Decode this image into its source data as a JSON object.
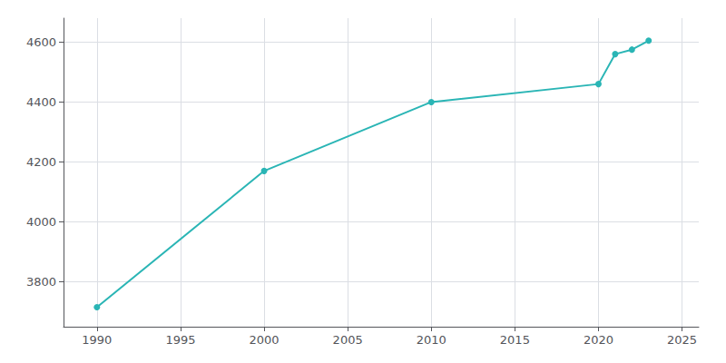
{
  "chart_data": {
    "type": "line",
    "x": [
      1990,
      2000,
      2010,
      2020,
      2021,
      2022,
      2023
    ],
    "values": [
      3715,
      4170,
      4400,
      4460,
      4560,
      4575,
      4605
    ],
    "color": "#2ab5b5",
    "marker": "circle",
    "xlim": [
      1988,
      2026
    ],
    "ylim": [
      3650,
      4680
    ],
    "xticks": [
      1990,
      1995,
      2000,
      2005,
      2010,
      2015,
      2020,
      2025
    ],
    "yticks": [
      3800,
      4000,
      4200,
      4400,
      4600
    ],
    "grid": true
  }
}
